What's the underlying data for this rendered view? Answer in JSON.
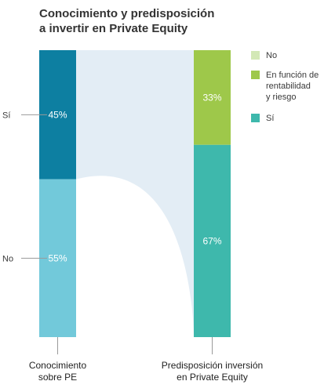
{
  "chart_data": {
    "type": "bar",
    "title_lines": [
      "Conocimiento y predisposición",
      "a invertir en Private Equity"
    ],
    "categories": [
      {
        "lines": [
          "Conocimiento",
          "sobre PE"
        ]
      },
      {
        "lines": [
          "Predisposición inversión",
          "en Private Equity"
        ]
      }
    ],
    "bars": [
      {
        "segments": [
          {
            "label": "Sí",
            "value": 45,
            "text": "45%",
            "color": "#0d7fa1"
          },
          {
            "label": "No",
            "value": 55,
            "text": "55%",
            "color": "#72c9da"
          }
        ]
      },
      {
        "segments": [
          {
            "label": "En función de rentabilidad y riesgo",
            "value": 33,
            "text": "33%",
            "color": "#9ec84a"
          },
          {
            "label": "Sí",
            "value": 67,
            "text": "67%",
            "color": "#3eb8ac"
          }
        ]
      }
    ],
    "left_ticks": [
      {
        "label": "Sí",
        "segment": 0
      },
      {
        "label": "No",
        "segment": 1
      }
    ],
    "legend": [
      {
        "label_lines": [
          "No"
        ],
        "color": "#d3e8b6"
      },
      {
        "label_lines": [
          "En función de",
          "rentabilidad",
          "y riesgo"
        ],
        "color": "#9ec84a"
      },
      {
        "label_lines": [
          "Sí"
        ],
        "color": "#3eb8ac"
      }
    ],
    "flow_color": "#e3edf5"
  }
}
